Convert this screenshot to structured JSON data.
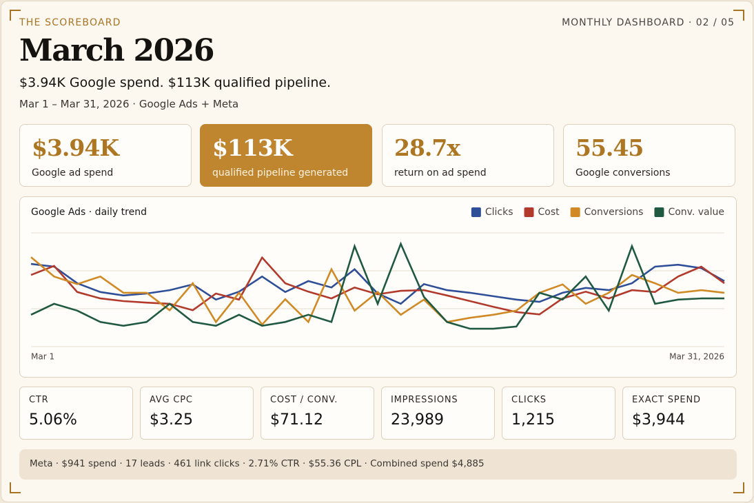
{
  "header": {
    "kicker": "THE SCOREBOARD",
    "page_label": "MONTHLY DASHBOARD · 02 / 05",
    "title": "March 2026",
    "subtitle": "$3.94K Google spend. $113K qualified pipeline.",
    "date_range": "Mar 1 – Mar 31, 2026 · Google Ads + Meta"
  },
  "kpis": [
    {
      "value": "$3.94K",
      "label": "Google ad spend"
    },
    {
      "value": "$113K",
      "label": "qualified pipeline generated"
    },
    {
      "value": "28.7x",
      "label": "return on ad spend"
    },
    {
      "value": "55.45",
      "label": "Google conversions"
    }
  ],
  "chart_data": {
    "type": "line",
    "title": "Google Ads · daily trend",
    "categories": [
      "Mar 1",
      null,
      null,
      null,
      null,
      null,
      null,
      null,
      null,
      null,
      null,
      null,
      null,
      null,
      null,
      null,
      null,
      null,
      null,
      null,
      null,
      null,
      null,
      null,
      null,
      null,
      null,
      null,
      null,
      null,
      "Mar 31, 2026"
    ],
    "ylim": [
      0,
      3
    ],
    "yticks": [
      0,
      1,
      2,
      3
    ],
    "grid": true,
    "legend": "top-right",
    "series": [
      {
        "name": "Clicks",
        "color": "#2e4f98",
        "values": [
          2.18,
          2.11,
          1.67,
          1.44,
          1.35,
          1.4,
          1.49,
          1.64,
          1.24,
          1.45,
          1.85,
          1.44,
          1.73,
          1.56,
          2.04,
          1.4,
          1.13,
          1.65,
          1.49,
          1.42,
          1.33,
          1.24,
          1.18,
          1.42,
          1.55,
          1.49,
          1.67,
          2.11,
          2.16,
          2.07,
          1.73
        ]
      },
      {
        "name": "Cost",
        "color": "#b23a2c",
        "values": [
          1.89,
          2.13,
          1.44,
          1.27,
          1.2,
          1.16,
          1.13,
          0.96,
          1.4,
          1.24,
          2.35,
          1.67,
          1.45,
          1.27,
          1.56,
          1.38,
          1.47,
          1.49,
          1.35,
          1.2,
          1.05,
          0.91,
          0.85,
          1.27,
          1.45,
          1.27,
          1.49,
          1.44,
          1.85,
          2.11,
          1.67
        ]
      },
      {
        "name": "Conversions",
        "color": "#d08a25",
        "values": [
          2.36,
          1.85,
          1.65,
          1.85,
          1.42,
          1.42,
          0.96,
          1.67,
          0.65,
          1.42,
          0.58,
          1.25,
          0.65,
          2.04,
          0.95,
          1.44,
          0.84,
          1.24,
          0.65,
          0.76,
          0.84,
          0.95,
          1.42,
          1.64,
          1.13,
          1.42,
          1.89,
          1.67,
          1.42,
          1.49,
          1.42
        ]
      },
      {
        "name": "Conv. value",
        "color": "#1f5a40",
        "values": [
          0.84,
          1.13,
          0.95,
          0.65,
          0.55,
          0.65,
          1.13,
          0.65,
          0.55,
          0.84,
          0.55,
          0.65,
          0.84,
          0.65,
          2.65,
          1.13,
          2.71,
          1.31,
          0.65,
          0.47,
          0.47,
          0.53,
          1.42,
          1.24,
          1.85,
          0.95,
          2.65,
          1.13,
          1.24,
          1.27,
          1.27
        ]
      }
    ]
  },
  "metrics": [
    {
      "label": "CTR",
      "value": "5.06%"
    },
    {
      "label": "AVG CPC",
      "value": "$3.25"
    },
    {
      "label": "COST / CONV.",
      "value": "$71.12"
    },
    {
      "label": "IMPRESSIONS",
      "value": "23,989"
    },
    {
      "label": "CLICKS",
      "value": "1,215"
    },
    {
      "label": "EXACT SPEND",
      "value": "$3,944"
    }
  ],
  "footer": "Meta · $941 spend · 17 leads · 461 link clicks · 2.71% CTR · $55.36 CPL · Combined spend $4,885"
}
